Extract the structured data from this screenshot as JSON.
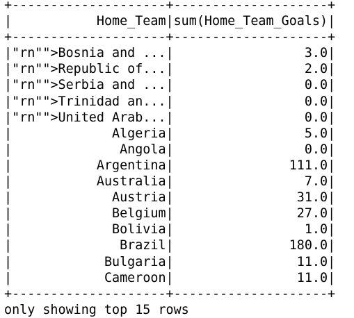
{
  "table": {
    "headers": [
      "Home_Team",
      "sum(Home_Team_Goals)"
    ],
    "rows": [
      [
        "\"rn\"\">Bosnia and ...",
        "3.0"
      ],
      [
        "\"rn\"\">Republic of...",
        "2.0"
      ],
      [
        "\"rn\"\">Serbia and ...",
        "0.0"
      ],
      [
        "\"rn\"\">Trinidad an...",
        "0.0"
      ],
      [
        "\"rn\"\">United Arab...",
        "0.0"
      ],
      [
        "Algeria",
        "5.0"
      ],
      [
        "Angola",
        "0.0"
      ],
      [
        "Argentina",
        "111.0"
      ],
      [
        "Australia",
        "7.0"
      ],
      [
        "Austria",
        "31.0"
      ],
      [
        "Belgium",
        "27.0"
      ],
      [
        "Bolivia",
        "1.0"
      ],
      [
        "Brazil",
        "180.0"
      ],
      [
        "Bulgaria",
        "11.0"
      ],
      [
        "Cameroon",
        "11.0"
      ]
    ]
  },
  "footer": "only showing top 15 rows"
}
